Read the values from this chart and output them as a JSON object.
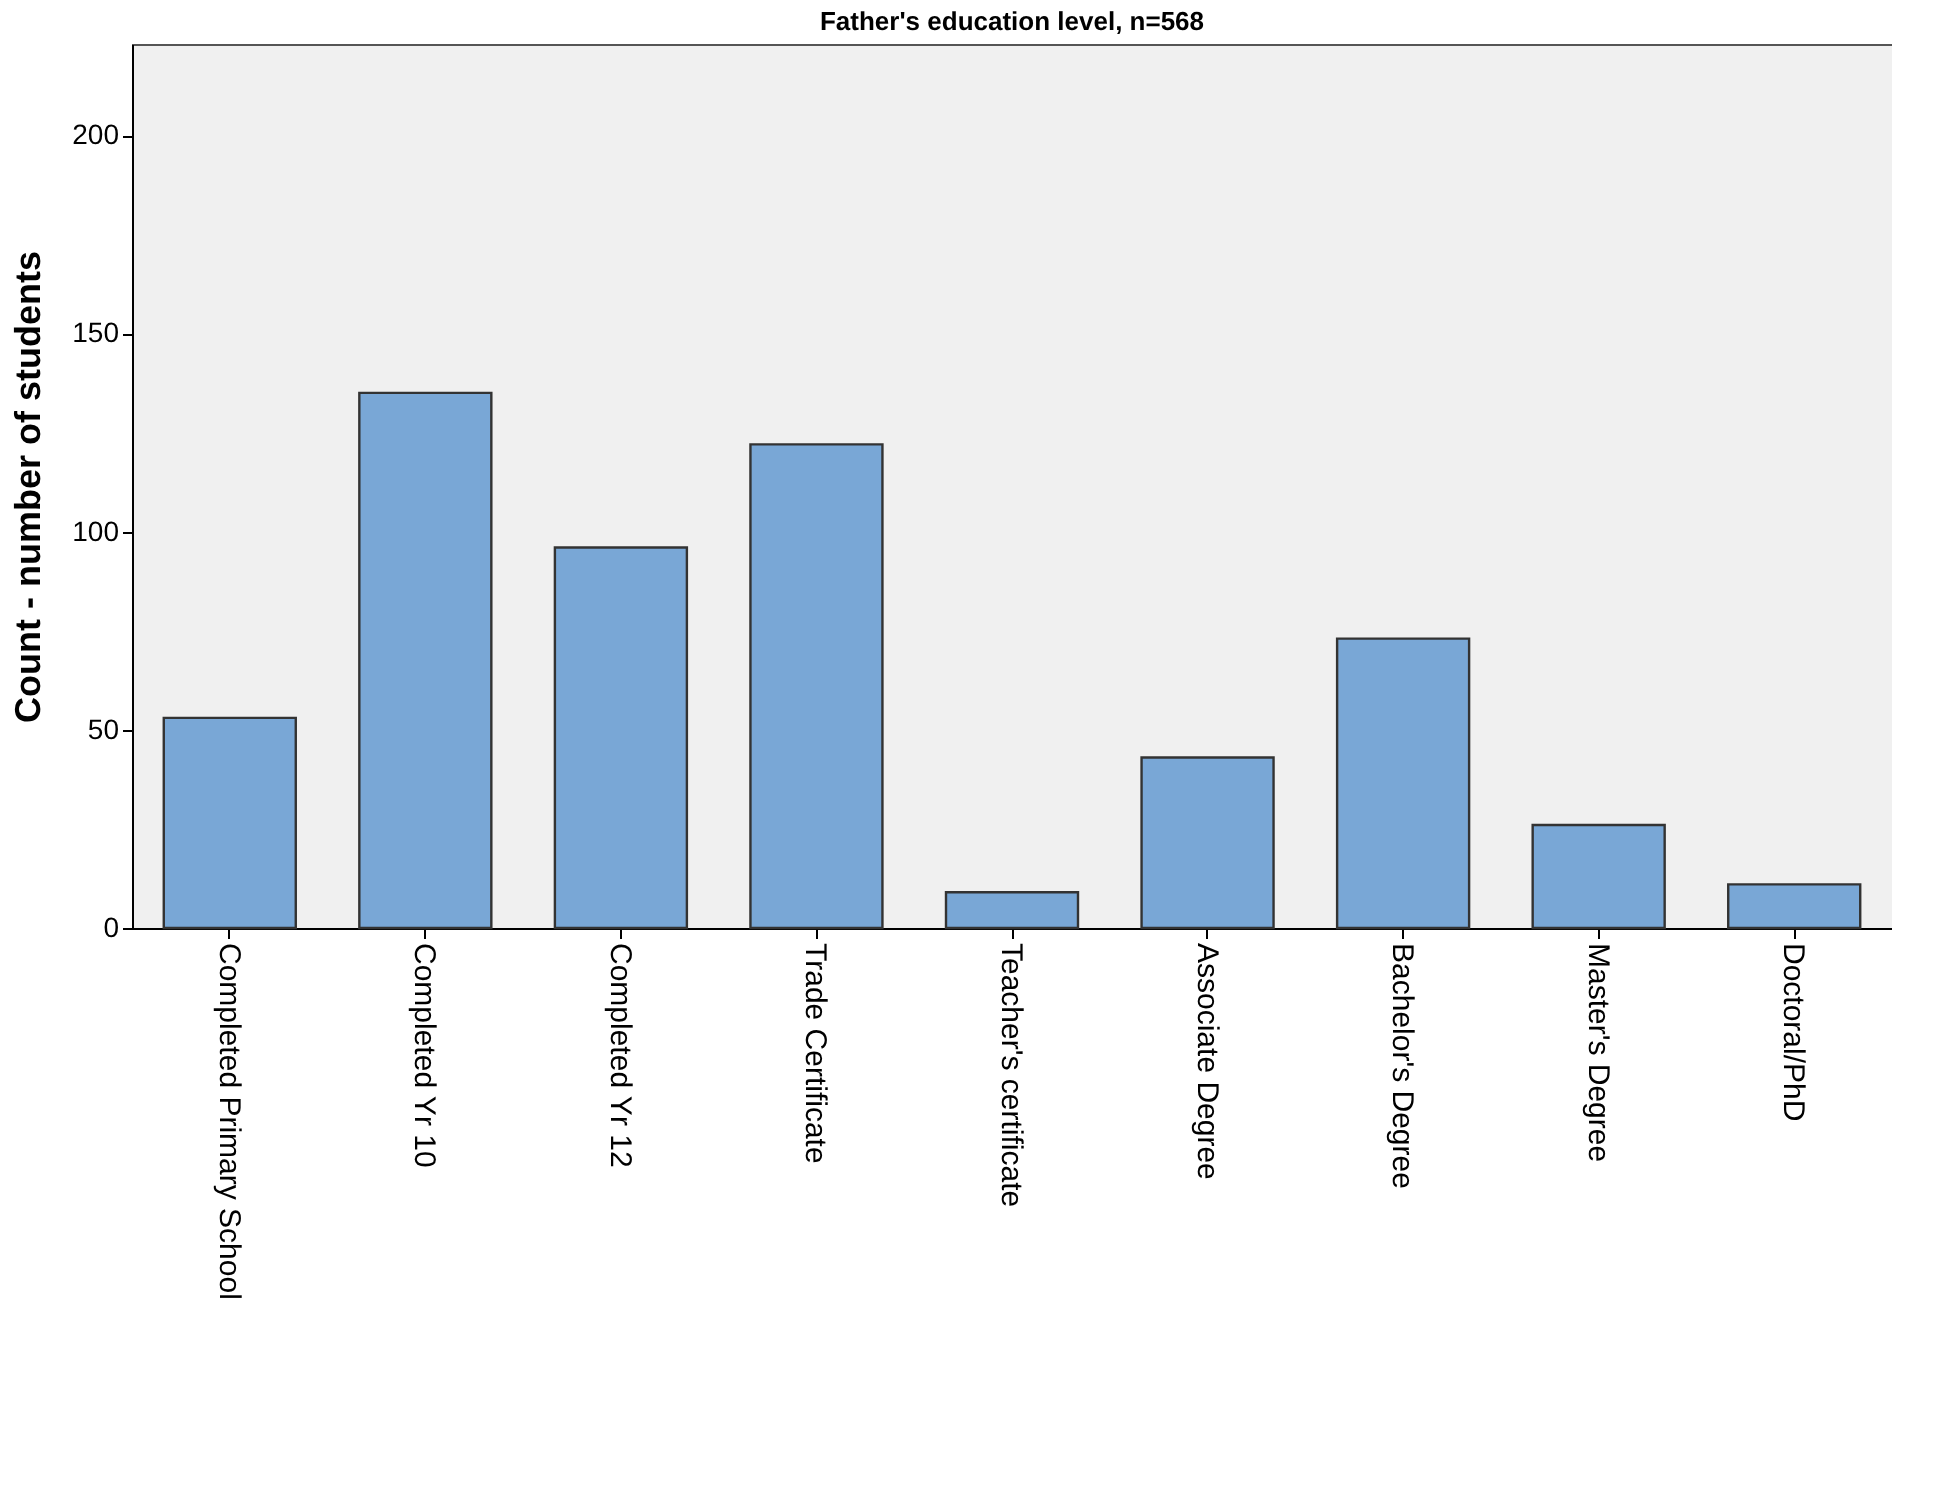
{
  "chart_data": {
    "type": "bar",
    "title": "Father's education level, n=568",
    "ylabel": "Count - number of students",
    "categories": [
      "Completed Primary School",
      "Completed Yr 10",
      "Completed Yr 12",
      "Trade Certificate",
      "Teacher's certificate",
      "Associate Degree",
      "Bachelor's Degree",
      "Master's Degree",
      "Doctoral/PhD"
    ],
    "values": [
      53,
      135,
      96,
      122,
      9,
      43,
      73,
      26,
      11
    ],
    "color": "#79a7d6",
    "ylim": [
      0,
      223
    ],
    "yticks": [
      0,
      50,
      100,
      150,
      200
    ],
    "grid": false
  }
}
